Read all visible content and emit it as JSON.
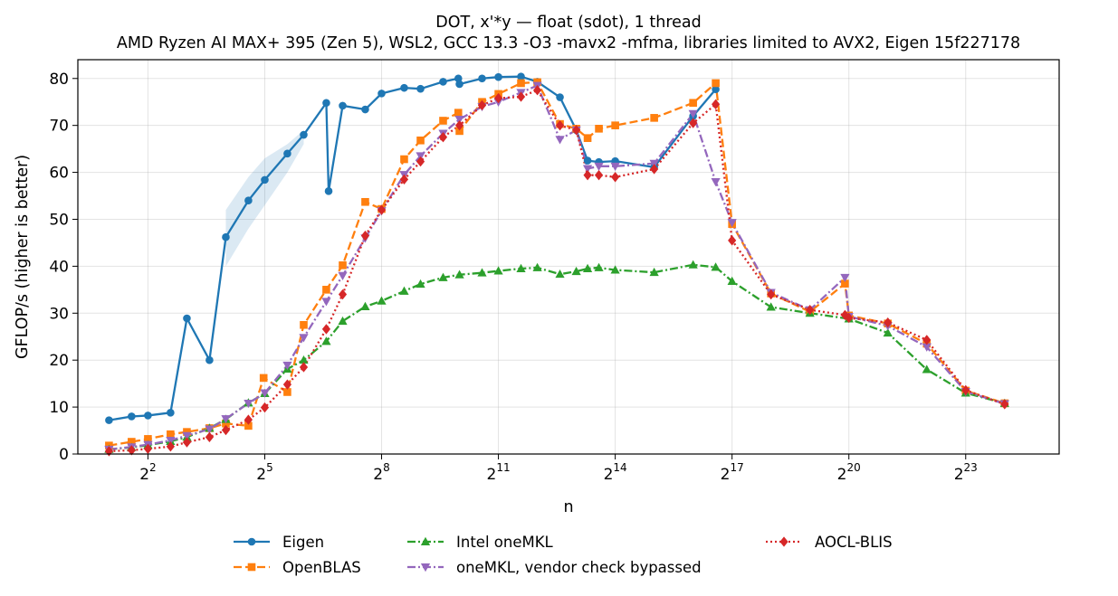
{
  "chart_data": {
    "type": "line",
    "title": "DOT, x'*y — float (sdot), 1 thread",
    "subtitle": "AMD Ryzen AI MAX+ 395 (Zen 5), WSL2, GCC 13.3 -O3 -mavx2 -mfma, libraries limited to AVX2, Eigen 15f227178",
    "xlabel": "n",
    "ylabel": "GFLOP/s (higher is better)",
    "xscale": "log2",
    "xlim_log2": [
      0.2,
      25.4
    ],
    "ylim": [
      0,
      84
    ],
    "x_ticks": [
      {
        "base": "2",
        "exp": "2",
        "log2": 2
      },
      {
        "base": "2",
        "exp": "5",
        "log2": 5
      },
      {
        "base": "2",
        "exp": "8",
        "log2": 8
      },
      {
        "base": "2",
        "exp": "11",
        "log2": 11
      },
      {
        "base": "2",
        "exp": "14",
        "log2": 14
      },
      {
        "base": "2",
        "exp": "17",
        "log2": 17
      },
      {
        "base": "2",
        "exp": "20",
        "log2": 20
      },
      {
        "base": "2",
        "exp": "23",
        "log2": 23
      }
    ],
    "y_ticks": [
      0,
      10,
      20,
      30,
      40,
      50,
      60,
      70,
      80
    ],
    "grid": true,
    "legend_position": "below",
    "series": [
      {
        "name": "Eigen",
        "color": "#1f77b4",
        "marker": "circle",
        "dash": "solid",
        "points": [
          [
            1,
            7.2
          ],
          [
            1.58,
            8.0
          ],
          [
            2,
            8.2
          ],
          [
            2.58,
            8.8
          ],
          [
            3,
            28.9
          ],
          [
            3.58,
            20.0
          ],
          [
            4,
            46.2
          ],
          [
            4.58,
            54.0
          ],
          [
            5,
            58.4
          ],
          [
            5.58,
            64.0
          ],
          [
            6,
            68.0
          ],
          [
            6.58,
            74.8
          ],
          [
            6.64,
            56.0
          ],
          [
            7,
            74.2
          ],
          [
            7.58,
            73.4
          ],
          [
            8,
            76.8
          ],
          [
            8.58,
            78.0
          ],
          [
            9,
            77.8
          ],
          [
            9.58,
            79.3
          ],
          [
            9.97,
            80.0
          ],
          [
            10,
            78.8
          ],
          [
            10.58,
            80.0
          ],
          [
            11,
            80.3
          ],
          [
            11.58,
            80.4
          ],
          [
            12,
            79.3
          ],
          [
            12.58,
            76.0
          ],
          [
            13,
            69.0
          ],
          [
            13.29,
            62.5
          ],
          [
            13.58,
            62.2
          ],
          [
            14,
            62.4
          ],
          [
            15,
            61.1
          ],
          [
            16,
            72.0
          ],
          [
            16.58,
            77.7
          ]
        ],
        "band": {
          "x": [
            4,
            4.58,
            5,
            5.58,
            6
          ],
          "lo": [
            40,
            48,
            53,
            60,
            66
          ],
          "hi": [
            52,
            59,
            63,
            66,
            69
          ]
        }
      },
      {
        "name": "OpenBLAS",
        "color": "#ff7f0e",
        "marker": "square",
        "dash": "dashed",
        "points": [
          [
            1,
            1.8
          ],
          [
            1.58,
            2.6
          ],
          [
            2,
            3.2
          ],
          [
            2.58,
            4.2
          ],
          [
            3,
            4.7
          ],
          [
            3.58,
            5.5
          ],
          [
            4,
            6.5
          ],
          [
            4.58,
            6.0
          ],
          [
            4.97,
            16.2
          ],
          [
            5.58,
            13.2
          ],
          [
            6,
            27.5
          ],
          [
            6.58,
            35.0
          ],
          [
            7,
            40.2
          ],
          [
            7.58,
            53.7
          ],
          [
            8,
            52.2
          ],
          [
            8.58,
            62.8
          ],
          [
            9,
            66.8
          ],
          [
            9.58,
            71.0
          ],
          [
            9.97,
            72.7
          ],
          [
            10,
            68.8
          ],
          [
            10.58,
            75.0
          ],
          [
            11,
            76.7
          ],
          [
            11.58,
            79.0
          ],
          [
            12,
            79.2
          ],
          [
            12.58,
            70.3
          ],
          [
            13,
            69.3
          ],
          [
            13.29,
            67.3
          ],
          [
            13.58,
            69.3
          ],
          [
            14,
            70.0
          ],
          [
            15,
            71.6
          ],
          [
            16,
            74.8
          ],
          [
            16.58,
            79.0
          ],
          [
            17,
            49.0
          ],
          [
            18,
            34.2
          ],
          [
            19,
            30.3
          ],
          [
            19.9,
            36.3
          ],
          [
            20,
            29.5
          ],
          [
            21,
            27.8
          ],
          [
            22,
            23.5
          ],
          [
            23,
            13.5
          ],
          [
            24,
            10.8
          ]
        ]
      },
      {
        "name": "Intel oneMKL",
        "color": "#2ca02c",
        "marker": "triangle-up",
        "dash": "dashdot",
        "points": [
          [
            1,
            1.0
          ],
          [
            1.58,
            1.4
          ],
          [
            2,
            1.9
          ],
          [
            2.58,
            2.7
          ],
          [
            3,
            3.6
          ],
          [
            3.58,
            5.5
          ],
          [
            4,
            7.4
          ],
          [
            4.58,
            10.9
          ],
          [
            5,
            12.9
          ],
          [
            5.58,
            18.1
          ],
          [
            6,
            20.0
          ],
          [
            6.58,
            24.0
          ],
          [
            7,
            28.3
          ],
          [
            7.58,
            31.4
          ],
          [
            8,
            32.6
          ],
          [
            8.58,
            34.7
          ],
          [
            9,
            36.2
          ],
          [
            9.58,
            37.6
          ],
          [
            10,
            38.2
          ],
          [
            10.58,
            38.6
          ],
          [
            11,
            39.0
          ],
          [
            11.58,
            39.5
          ],
          [
            12,
            39.7
          ],
          [
            12.58,
            38.3
          ],
          [
            13,
            38.9
          ],
          [
            13.29,
            39.5
          ],
          [
            13.58,
            39.7
          ],
          [
            14,
            39.2
          ],
          [
            15,
            38.7
          ],
          [
            16,
            40.3
          ],
          [
            16.58,
            39.8
          ],
          [
            17,
            36.8
          ],
          [
            18,
            31.3
          ],
          [
            19,
            30.0
          ],
          [
            20,
            28.8
          ],
          [
            21,
            25.8
          ],
          [
            22,
            18.0
          ],
          [
            23,
            13.0
          ],
          [
            24,
            10.8
          ]
        ]
      },
      {
        "name": "oneMKL, vendor check bypassed",
        "color": "#9467bd",
        "marker": "triangle-down",
        "dash": "dashdot",
        "points": [
          [
            1,
            1.0
          ],
          [
            1.58,
            1.5
          ],
          [
            2,
            2.0
          ],
          [
            2.58,
            2.9
          ],
          [
            3,
            3.9
          ],
          [
            3.58,
            5.3
          ],
          [
            4,
            7.5
          ],
          [
            4.58,
            10.8
          ],
          [
            5,
            13.0
          ],
          [
            5.58,
            18.9
          ],
          [
            6,
            24.8
          ],
          [
            6.58,
            32.5
          ],
          [
            7,
            38.0
          ],
          [
            7.58,
            46.0
          ],
          [
            8,
            51.8
          ],
          [
            8.58,
            59.5
          ],
          [
            9,
            63.5
          ],
          [
            9.58,
            68.3
          ],
          [
            10,
            71.3
          ],
          [
            10.58,
            74.0
          ],
          [
            11,
            75.0
          ],
          [
            11.58,
            77.0
          ],
          [
            12,
            78.5
          ],
          [
            12.58,
            67.0
          ],
          [
            13,
            69.0
          ],
          [
            13.29,
            60.8
          ],
          [
            13.58,
            61.3
          ],
          [
            14,
            61.3
          ],
          [
            15,
            61.9
          ],
          [
            16,
            72.5
          ],
          [
            16.58,
            58.0
          ],
          [
            17,
            49.3
          ],
          [
            18,
            34.4
          ],
          [
            19,
            30.7
          ],
          [
            19.9,
            37.6
          ],
          [
            20,
            29.3
          ],
          [
            21,
            27.3
          ],
          [
            22,
            22.8
          ],
          [
            23,
            13.3
          ],
          [
            24,
            10.7
          ]
        ]
      },
      {
        "name": "AOCL-BLIS",
        "color": "#d62728",
        "marker": "diamond",
        "dash": "dotted",
        "points": [
          [
            1,
            0.6
          ],
          [
            1.58,
            0.8
          ],
          [
            2,
            1.1
          ],
          [
            2.58,
            1.6
          ],
          [
            3,
            2.5
          ],
          [
            3.58,
            3.6
          ],
          [
            4,
            5.1
          ],
          [
            4.58,
            7.3
          ],
          [
            5,
            9.9
          ],
          [
            5.58,
            14.8
          ],
          [
            6,
            18.5
          ],
          [
            6.58,
            26.6
          ],
          [
            7,
            34.0
          ],
          [
            7.58,
            46.5
          ],
          [
            8,
            52.0
          ],
          [
            8.58,
            58.5
          ],
          [
            9,
            62.3
          ],
          [
            9.58,
            67.5
          ],
          [
            10,
            70.0
          ],
          [
            10.58,
            74.3
          ],
          [
            11,
            75.8
          ],
          [
            11.58,
            76.1
          ],
          [
            12,
            77.5
          ],
          [
            12.58,
            70.0
          ],
          [
            13,
            69.0
          ],
          [
            13.29,
            59.4
          ],
          [
            13.58,
            59.4
          ],
          [
            14,
            59.0
          ],
          [
            15,
            60.7
          ],
          [
            16,
            70.5
          ],
          [
            16.58,
            74.5
          ],
          [
            17,
            45.5
          ],
          [
            18,
            34.0
          ],
          [
            19,
            30.7
          ],
          [
            19.9,
            29.6
          ],
          [
            20,
            29.0
          ],
          [
            21,
            28.0
          ],
          [
            22,
            24.3
          ],
          [
            23,
            13.6
          ],
          [
            24,
            10.6
          ]
        ]
      }
    ]
  }
}
